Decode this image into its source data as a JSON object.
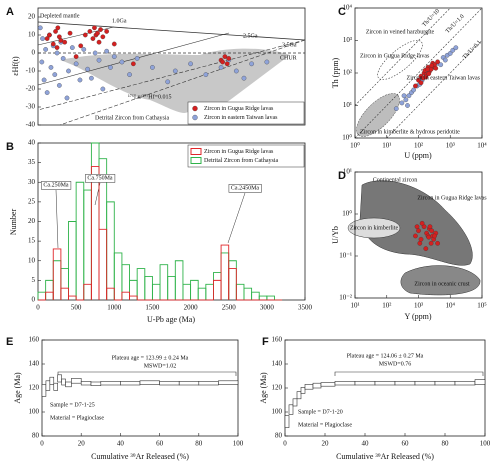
{
  "chart_data": [
    {
      "label": "A",
      "type": "scatter",
      "ylabel": "εHf(t)",
      "xlim": [
        0,
        3500
      ],
      "ylim": [
        -40,
        25
      ],
      "yticks": [
        20,
        10,
        0,
        -10,
        -20,
        -30,
        -40
      ],
      "legend": "lower right",
      "annotations": [
        "Depleted mantle",
        "1.0Ga",
        "2.5Ga",
        "3.5Ga",
        "CHUR",
        "¹⁷⁶Lu/¹⁷⁷Hf=0.015",
        "Detrital Zircon from Cathaysia"
      ],
      "series": [
        {
          "name": "Zircon in eastern Taiwan lavas",
          "color": "#8fa3d9",
          "x": [
            30,
            50,
            60,
            80,
            100,
            120,
            150,
            170,
            200,
            220,
            250,
            280,
            300,
            330,
            380,
            400,
            450,
            500,
            550,
            600,
            650,
            700,
            750,
            800,
            850,
            900,
            950,
            1000,
            1100,
            1200,
            1300,
            1500,
            1700,
            1800,
            2000,
            2200,
            2400,
            2500,
            2600,
            2700,
            2800,
            3000
          ],
          "y": [
            14,
            -5,
            8,
            -15,
            2,
            -22,
            10,
            -8,
            4,
            -12,
            0,
            -18,
            6,
            -3,
            -25,
            -10,
            3,
            -6,
            -15,
            2,
            -9,
            -14,
            0,
            -4,
            -20,
            1,
            -8,
            -2,
            -5,
            -12,
            -3,
            -8,
            -16,
            -10,
            -6,
            -12,
            -8,
            -4,
            -10,
            -14,
            -6,
            -5
          ]
        },
        {
          "name": "Zircon in Gugua Ridge lavas",
          "color": "#d42020",
          "x": [
            120,
            150,
            200,
            230,
            250,
            260,
            280,
            300,
            350,
            420,
            500,
            560,
            620,
            680,
            720,
            740,
            760,
            780,
            800,
            820,
            850,
            900,
            1000,
            1250,
            2400,
            2420,
            2450,
            2480,
            2500
          ],
          "y": [
            8,
            10,
            5,
            12,
            3,
            14,
            9,
            7,
            6,
            11,
            -2,
            4,
            10,
            12,
            8,
            14,
            10,
            11,
            6,
            13,
            9,
            12,
            5,
            -6,
            -4,
            -5,
            -2,
            -6,
            -3
          ]
        }
      ]
    },
    {
      "label": "B",
      "type": "histogram",
      "xlabel": "U-Pb age (Ma)",
      "ylabel": "Number",
      "xlim": [
        0,
        3500
      ],
      "ylim": [
        0,
        40
      ],
      "xticks": [
        0,
        500,
        1000,
        1500,
        2000,
        2500,
        3000,
        3500
      ],
      "yticks": [
        0,
        5,
        10,
        15,
        20,
        25,
        30,
        35,
        40
      ],
      "legend": "upper right",
      "annotations": [
        "Ca.250Ma",
        "Ca.750Ma",
        "Ca.2450Ma"
      ],
      "bins": [
        0,
        100,
        200,
        300,
        400,
        500,
        600,
        700,
        800,
        900,
        1000,
        1100,
        1200,
        1300,
        1400,
        1500,
        1600,
        1700,
        1800,
        1900,
        2000,
        2100,
        2200,
        2300,
        2400,
        2500,
        2600,
        2700,
        2800,
        2900,
        3000,
        3100,
        3200
      ],
      "series": [
        {
          "name": "Detrital Zircon from Cathaysia",
          "color": "#2fb34a",
          "values": [
            2,
            5,
            10,
            8,
            20,
            30,
            28,
            40,
            36,
            25,
            12,
            9,
            5,
            8,
            6,
            4,
            9,
            6,
            10,
            4,
            5,
            3,
            4,
            7,
            12,
            10,
            4,
            3,
            2,
            1,
            1,
            0
          ]
        },
        {
          "name": "Zircon in Gugua Ridge lavas",
          "color": "#e0262a",
          "values": [
            0,
            2,
            13,
            3,
            1,
            0,
            4,
            34,
            18,
            3,
            0,
            2,
            1,
            0,
            0,
            0,
            0,
            0,
            0,
            0,
            0,
            0,
            0,
            5,
            14,
            8,
            0,
            0,
            0,
            0,
            0,
            0
          ]
        }
      ]
    },
    {
      "label": "C",
      "type": "scatter",
      "xlabel": "U (ppm)",
      "ylabel": "Th (ppm)",
      "xlim": [
        1,
        10000
      ],
      "ylim": [
        1,
        10000
      ],
      "xlog": true,
      "ylog": true,
      "legend": "inline",
      "xticks": [
        {
          "value": 1,
          "label": "10⁰"
        },
        {
          "value": 10,
          "label": "10¹"
        },
        {
          "value": 100,
          "label": "10²"
        },
        {
          "value": 1000,
          "label": "10³"
        },
        {
          "value": 10000,
          "label": "10⁴"
        }
      ],
      "yticks": [
        {
          "value": 1,
          "label": "10⁰"
        },
        {
          "value": 10,
          "label": "10¹"
        },
        {
          "value": 100,
          "label": "10²"
        },
        {
          "value": 1000,
          "label": "10³"
        },
        {
          "value": 10000,
          "label": "10⁴"
        }
      ],
      "annotations": [
        "Zircon in veined harzburgite",
        "Zircon in kimberlite & hydrous peridotite",
        "Th/U=10",
        "Th/U=1.0",
        "Th/U=0.1"
      ],
      "series": [
        {
          "name": "Zircon in eastern Taiwan lavas",
          "color": "#8fa3d9",
          "x": [
            20,
            30,
            40,
            50,
            60,
            70,
            90,
            110,
            130,
            300,
            400,
            500,
            600,
            700,
            800,
            1000,
            1200,
            1500,
            45,
            35
          ],
          "y": [
            8,
            12,
            15,
            20,
            25,
            30,
            40,
            45,
            60,
            150,
            200,
            180,
            300,
            250,
            350,
            400,
            500,
            600,
            10,
            20
          ]
        },
        {
          "name": "Zircon in Gugua Ridge lavas",
          "color": "#d42020",
          "x": [
            80,
            100,
            120,
            140,
            150,
            160,
            180,
            200,
            220,
            250,
            280,
            300,
            320,
            350,
            400,
            120,
            170,
            210,
            260,
            190
          ],
          "y": [
            40,
            60,
            80,
            70,
            100,
            120,
            90,
            150,
            110,
            130,
            200,
            160,
            180,
            140,
            220,
            50,
            75,
            95,
            170,
            130
          ]
        }
      ]
    },
    {
      "label": "D",
      "type": "scatter",
      "xlabel": "Y (ppm)",
      "ylabel": "U/Yb",
      "xlim": [
        10,
        100000
      ],
      "ylim": [
        0.01,
        10
      ],
      "xlog": true,
      "ylog": true,
      "legend": "inline",
      "xticks": [
        {
          "value": 10,
          "label": "10¹"
        },
        {
          "value": 100,
          "label": "10²"
        },
        {
          "value": 1000,
          "label": "10³"
        },
        {
          "value": 10000,
          "label": "10⁴"
        },
        {
          "value": 100000,
          "label": "10⁵"
        }
      ],
      "yticks": [
        {
          "value": 0.01,
          "label": "10⁻²"
        },
        {
          "value": 0.1,
          "label": "10⁻¹"
        },
        {
          "value": 1,
          "label": "10⁰"
        },
        {
          "value": 10,
          "label": "10¹"
        }
      ],
      "annotations": [
        "Continental zircon",
        "Zircon in kimberlite",
        "Zircon in oceanic crust"
      ],
      "series": [
        {
          "name": "Zircon in Gugua Ridge lavas",
          "color": "#d42020",
          "x": [
            800,
            1000,
            1200,
            1500,
            1800,
            2000,
            2200,
            2500,
            2800,
            3000,
            3500,
            4000,
            1300,
            1700,
            2300,
            2600,
            3200,
            900,
            1100,
            2100
          ],
          "y": [
            0.3,
            0.4,
            0.25,
            0.5,
            0.35,
            0.3,
            0.45,
            0.2,
            0.3,
            0.25,
            0.35,
            0.2,
            0.6,
            0.15,
            0.5,
            0.4,
            0.3,
            0.5,
            0.2,
            0.28
          ]
        }
      ]
    },
    {
      "label": "E",
      "type": "plateau",
      "xlabel": "Cumulative ³⁹Ar Released (%)",
      "ylabel": "Age (Ma)",
      "xlim": [
        0,
        100
      ],
      "ylim": [
        80,
        160
      ],
      "xticks": [
        0,
        20,
        40,
        60,
        80,
        100
      ],
      "yticks": [
        80,
        100,
        120,
        140,
        160
      ],
      "annotations": [
        "Plateau age = 123.99 ± 0.24 Ma",
        "MSWD=1.02",
        "Sample = D7-1-25",
        "Material = Plagioclase"
      ],
      "edges": [
        0,
        2,
        4,
        6,
        8,
        10,
        12,
        15,
        20,
        25,
        30,
        40,
        50,
        60,
        70,
        80,
        90,
        100
      ],
      "values": [
        118,
        122,
        126,
        121,
        128,
        125,
        123,
        126,
        124,
        123.5,
        124,
        124,
        124.5,
        124,
        124,
        124,
        124.5
      ],
      "errors": [
        5,
        4,
        3,
        3,
        3,
        2.5,
        2,
        2,
        1.5,
        1.5,
        1.5,
        1.5,
        1.5,
        1.5,
        1.5,
        1.5,
        1.5
      ]
    },
    {
      "label": "F",
      "type": "plateau",
      "xlabel": "Cumulative ³⁹Ar Released (%)",
      "ylabel": "Age (Ma)",
      "xlim": [
        0,
        100
      ],
      "ylim": [
        80,
        160
      ],
      "xticks": [
        0,
        20,
        40,
        60,
        80,
        100
      ],
      "yticks": [
        80,
        100,
        120,
        140,
        160
      ],
      "annotations": [
        "Plateau age = 124.06 ± 0.27 Ma",
        "MSWD=0.76",
        "Sample = D7-1-20",
        "Material = Plagioclase"
      ],
      "edges": [
        0,
        2,
        4,
        6,
        8,
        10,
        14,
        18,
        25,
        35,
        45,
        55,
        65,
        75,
        85,
        95,
        100
      ],
      "values": [
        92,
        102,
        108,
        114,
        118,
        121,
        122,
        123,
        124,
        124,
        124,
        124,
        124,
        124,
        124,
        125
      ],
      "errors": [
        5,
        4,
        3,
        3,
        2.5,
        2,
        2,
        1.5,
        1.5,
        1.5,
        1.5,
        1.5,
        1.5,
        1.5,
        1.5,
        2
      ]
    }
  ]
}
